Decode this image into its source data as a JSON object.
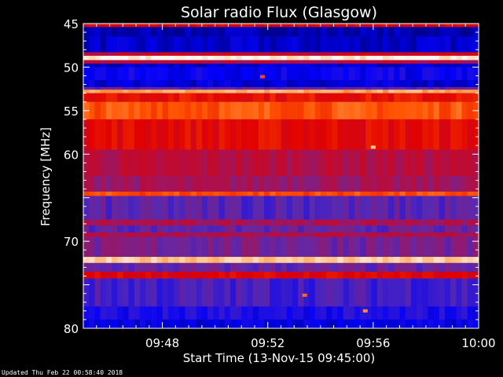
{
  "chart_data": {
    "type": "heatmap",
    "title": "Solar radio Flux (Glasgow)",
    "ylabel": "Frequency [MHz]",
    "xlabel": "Start Time (13-Nov-15 09:45:00)",
    "footer": "Updated Thu Feb 22 00:58:40 2018",
    "x_range_minutes": [
      0,
      15
    ],
    "x_ticks": [
      {
        "minute": 3,
        "label": "09:48"
      },
      {
        "minute": 7,
        "label": "09:52"
      },
      {
        "minute": 11,
        "label": "09:56"
      },
      {
        "minute": 15,
        "label": "10:00"
      }
    ],
    "y_range_mhz": [
      45,
      80
    ],
    "y_inverted": true,
    "y_ticks": [
      45,
      50,
      55,
      60,
      70,
      80
    ],
    "bands": [
      {
        "from": 45.0,
        "to": 45.4,
        "level": 0.55
      },
      {
        "from": 45.4,
        "to": 46.5,
        "level": 0.05
      },
      {
        "from": 46.5,
        "to": 48.3,
        "level": 0.08
      },
      {
        "from": 48.3,
        "to": 48.7,
        "level": 0.5
      },
      {
        "from": 48.7,
        "to": 49.2,
        "level": 0.97
      },
      {
        "from": 49.2,
        "to": 49.6,
        "level": 0.45
      },
      {
        "from": 49.6,
        "to": 50.0,
        "level": 0.08
      },
      {
        "from": 50.0,
        "to": 51.5,
        "level": 0.15
      },
      {
        "from": 51.5,
        "to": 52.3,
        "level": 0.1
      },
      {
        "from": 52.3,
        "to": 52.6,
        "level": 0.3
      },
      {
        "from": 52.6,
        "to": 53.0,
        "level": 0.85
      },
      {
        "from": 53.0,
        "to": 54.0,
        "level": 0.6
      },
      {
        "from": 54.0,
        "to": 56.0,
        "level": 0.72
      },
      {
        "from": 56.0,
        "to": 59.5,
        "level": 0.58
      },
      {
        "from": 59.5,
        "to": 62.5,
        "level": 0.45
      },
      {
        "from": 62.5,
        "to": 64.3,
        "level": 0.4
      },
      {
        "from": 64.3,
        "to": 64.8,
        "level": 0.7
      },
      {
        "from": 64.8,
        "to": 67.5,
        "level": 0.28
      },
      {
        "from": 67.5,
        "to": 68.2,
        "level": 0.42
      },
      {
        "from": 68.2,
        "to": 69.0,
        "level": 0.3
      },
      {
        "from": 69.0,
        "to": 69.5,
        "level": 0.45
      },
      {
        "from": 69.5,
        "to": 71.8,
        "level": 0.33
      },
      {
        "from": 71.8,
        "to": 72.5,
        "level": 0.9
      },
      {
        "from": 72.5,
        "to": 73.5,
        "level": 0.3
      },
      {
        "from": 73.5,
        "to": 74.3,
        "level": 0.55
      },
      {
        "from": 74.3,
        "to": 77.5,
        "level": 0.25
      },
      {
        "from": 77.5,
        "to": 79.0,
        "level": 0.18
      },
      {
        "from": 79.0,
        "to": 80.0,
        "level": 0.12
      }
    ],
    "hotspots": [
      {
        "minute": 6.8,
        "mhz": 51.1,
        "level": 0.7
      },
      {
        "minute": 11.0,
        "mhz": 59.2,
        "level": 0.9
      },
      {
        "minute": 8.4,
        "mhz": 76.2,
        "level": 0.75
      },
      {
        "minute": 10.7,
        "mhz": 78.0,
        "level": 0.8
      }
    ],
    "colorscale": [
      "#000080",
      "#0000ff",
      "#5a2bb0",
      "#b0104a",
      "#e00000",
      "#ff5000",
      "#ffb060",
      "#ffffff"
    ]
  }
}
